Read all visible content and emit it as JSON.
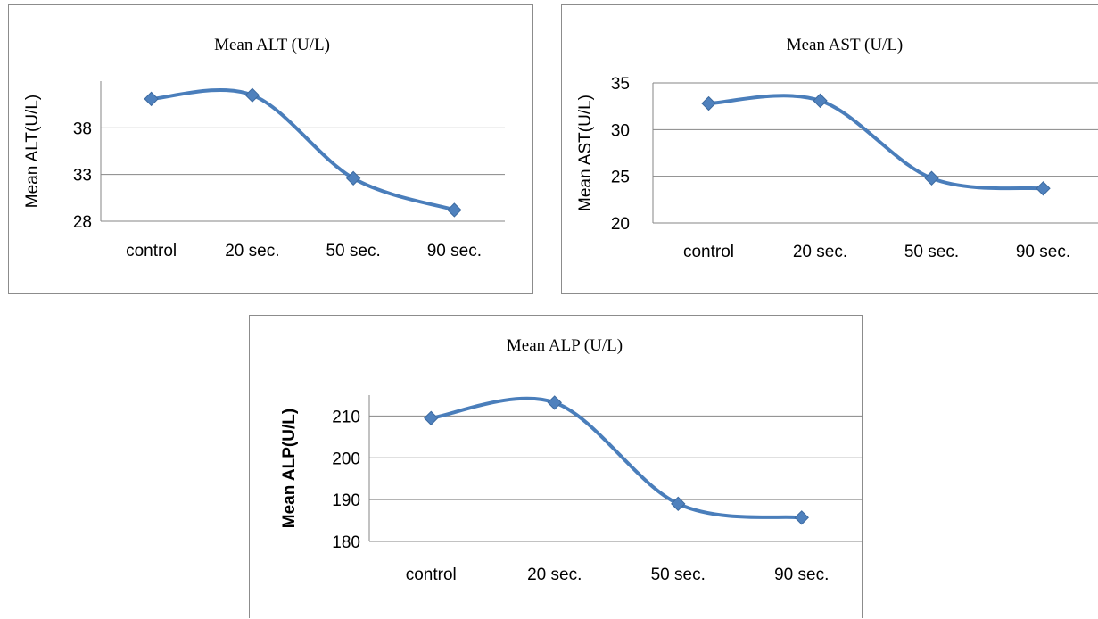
{
  "chart_data": [
    {
      "type": "line",
      "title": "Mean ALT (U/L)",
      "xlabel": "",
      "ylabel": "Mean ALT(U/L)",
      "categories": [
        "control",
        "20 sec.",
        "50 sec.",
        "90 sec."
      ],
      "series": [
        {
          "values": [
            41.1,
            41.5,
            32.6,
            29.2
          ]
        }
      ],
      "ylim": [
        28,
        43
      ],
      "yticks": [
        "38",
        "33",
        "28"
      ],
      "smooth": true,
      "grid": true,
      "legend": "none",
      "color": "#4f81bd",
      "marker": "diamond"
    },
    {
      "type": "line",
      "title": "Mean AST (U/L)",
      "xlabel": "",
      "ylabel": "Mean AST(U/L)",
      "categories": [
        "control",
        "20 sec.",
        "50 sec.",
        "90 sec."
      ],
      "series": [
        {
          "values": [
            32.8,
            33.1,
            24.8,
            23.7
          ]
        }
      ],
      "ylim": [
        20,
        35
      ],
      "yticks": [
        "35",
        "30",
        "25",
        "20"
      ],
      "smooth": true,
      "grid": true,
      "legend": "none",
      "color": "#4f81bd",
      "marker": "diamond"
    },
    {
      "type": "line",
      "title": "Mean ALP (U/L)",
      "xlabel": "",
      "ylabel": "Mean ALP(U/L)",
      "categories": [
        "control",
        "20 sec.",
        "50 sec.",
        "90 sec."
      ],
      "series": [
        {
          "values": [
            209.5,
            213.2,
            189.0,
            185.7
          ]
        }
      ],
      "ylim": [
        180,
        215
      ],
      "yticks": [
        "210",
        "200",
        "190",
        "180"
      ],
      "smooth": true,
      "grid": true,
      "legend": "none",
      "color": "#4f81bd",
      "marker": "diamond"
    }
  ]
}
